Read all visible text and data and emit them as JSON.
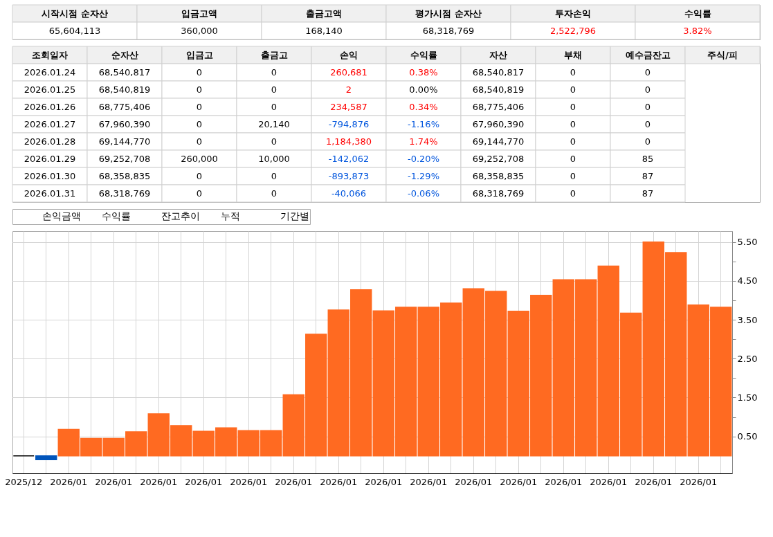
{
  "chart_data": [
    {
      "type": "other",
      "categories": [
        "시작시점 순자산",
        "입금고액",
        "출금고액",
        "평가시점 순자산",
        "투자손익",
        "수익률"
      ],
      "cell_labels": [
        [
          "65,604,113",
          "360,000",
          "168,140",
          "68,318,769",
          "2,522,796",
          "3.82%"
        ]
      ],
      "colors": [
        [
          "#000000",
          "#000000",
          "#000000",
          "#000000",
          "#ff0000",
          "#ff0000"
        ]
      ]
    },
    {
      "type": "other",
      "categories": [
        "조회일자",
        "순자산",
        "입금고",
        "출금고",
        "손익",
        "수익률",
        "자산",
        "부채",
        "예수금잔고",
        "주식/피"
      ],
      "y_categories": [
        "2026.01.24",
        "2026.01.25",
        "2026.01.26",
        "2026.01.27",
        "2026.01.28",
        "2026.01.29",
        "2026.01.30",
        "2026.01.31"
      ],
      "cell_labels": [
        [
          "68,540,817",
          "0",
          "0",
          "260,681",
          "0.38%",
          "68,540,817",
          "0",
          "0"
        ],
        [
          "68,540,819",
          "0",
          "0",
          "2",
          "0.00%",
          "68,540,819",
          "0",
          "0"
        ],
        [
          "68,775,406",
          "0",
          "0",
          "234,587",
          "0.34%",
          "68,775,406",
          "0",
          "0"
        ],
        [
          "67,960,390",
          "0",
          "20,140",
          "-794,876",
          "-1.16%",
          "67,960,390",
          "0",
          "0"
        ],
        [
          "69,144,770",
          "0",
          "0",
          "1,184,380",
          "1.74%",
          "69,144,770",
          "0",
          "0"
        ],
        [
          "69,252,708",
          "260,000",
          "10,000",
          "-142,062",
          "-0.20%",
          "69,252,708",
          "0",
          "85"
        ],
        [
          "68,358,835",
          "0",
          "0",
          "-893,873",
          "-1.29%",
          "68,358,835",
          "0",
          "87"
        ],
        [
          "68,318,769",
          "0",
          "0",
          "-40,066",
          "-0.06%",
          "68,318,769",
          "0",
          "87"
        ]
      ],
      "colors": [
        [
          "#000000",
          "#000000",
          "#000000",
          "#ff0000",
          "#ff0000",
          "#000000",
          "#000000",
          "#000000"
        ],
        [
          "#000000",
          "#000000",
          "#000000",
          "#ff0000",
          "#000000",
          "#000000",
          "#000000",
          "#000000"
        ],
        [
          "#000000",
          "#000000",
          "#000000",
          "#ff0000",
          "#ff0000",
          "#000000",
          "#000000",
          "#000000"
        ],
        [
          "#000000",
          "#000000",
          "#000000",
          "#0055dd",
          "#0055dd",
          "#000000",
          "#000000",
          "#000000"
        ],
        [
          "#000000",
          "#000000",
          "#000000",
          "#ff0000",
          "#ff0000",
          "#000000",
          "#000000",
          "#000000"
        ],
        [
          "#000000",
          "#000000",
          "#000000",
          "#0055dd",
          "#0055dd",
          "#000000",
          "#000000",
          "#000000"
        ],
        [
          "#000000",
          "#000000",
          "#000000",
          "#0055dd",
          "#0055dd",
          "#000000",
          "#000000",
          "#000000"
        ],
        [
          "#000000",
          "#000000",
          "#000000",
          "#0055dd",
          "#0055dd",
          "#000000",
          "#000000",
          "#000000"
        ]
      ]
    },
    {
      "type": "bar",
      "annotations": [
        "손익금액",
        "수익률",
        "잔고추이",
        "누적",
        "기간별"
      ],
      "categories": [
        "2025/12",
        null,
        "2026/01",
        null,
        "2026/01",
        null,
        "2026/01",
        null,
        "2026/01",
        null,
        "2026/01",
        null,
        "2026/01",
        null,
        "2026/01",
        null,
        "2026/01",
        null,
        "2026/01",
        null,
        "2026/01",
        null,
        "2026/01",
        null,
        "2026/01",
        null,
        "2026/01",
        null,
        "2026/01",
        null,
        "2026/01",
        null
      ],
      "values": [
        0,
        -0.1,
        0.68,
        0.45,
        0.45,
        0.62,
        1.08,
        0.78,
        0.63,
        0.72,
        0.65,
        0.65,
        1.57,
        3.13,
        3.75,
        4.27,
        3.73,
        3.82,
        3.82,
        3.93,
        4.3,
        4.23,
        3.72,
        4.13,
        4.53,
        4.53,
        4.88,
        3.67,
        5.5,
        5.23,
        3.88,
        3.82
      ],
      "colors": [
        "#000000",
        "#0055bb",
        "#ff6a21",
        "#ff6a21",
        "#ff6a21",
        "#ff6a21",
        "#ff6a21",
        "#ff6a21",
        "#ff6a21",
        "#ff6a21",
        "#ff6a21",
        "#ff6a21",
        "#ff6a21",
        "#ff6a21",
        "#ff6a21",
        "#ff6a21",
        "#ff6a21",
        "#ff6a21",
        "#ff6a21",
        "#ff6a21",
        "#ff6a21",
        "#ff6a21",
        "#ff6a21",
        "#ff6a21",
        "#ff6a21",
        "#ff6a21",
        "#ff6a21",
        "#ff6a21",
        "#ff6a21",
        "#ff6a21",
        "#ff6a21",
        "#ff6a21"
      ],
      "ylim": [
        -0.45,
        5.78
      ],
      "yticks": [
        {
          "value": 0.5,
          "label": "0.50"
        },
        {
          "value": 1.0,
          "label": null
        },
        {
          "value": 1.5,
          "label": "1.50"
        },
        {
          "value": 2.0,
          "label": null
        },
        {
          "value": 2.5,
          "label": "2.50"
        },
        {
          "value": 3.0,
          "label": null
        },
        {
          "value": 3.5,
          "label": "3.50"
        },
        {
          "value": 4.0,
          "label": null
        },
        {
          "value": 4.5,
          "label": "4.50"
        },
        {
          "value": 5.0,
          "label": null
        },
        {
          "value": 5.5,
          "label": "5.50"
        }
      ],
      "grid": true
    }
  ]
}
